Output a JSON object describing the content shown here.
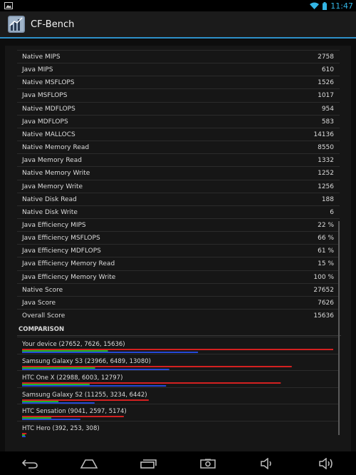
{
  "status_bar": {
    "time": "11:47"
  },
  "action_bar": {
    "title": "CF-Bench"
  },
  "results": [
    {
      "label": "Native MIPS",
      "value": "2758"
    },
    {
      "label": "Java MIPS",
      "value": "610"
    },
    {
      "label": "Native MSFLOPS",
      "value": "1526"
    },
    {
      "label": "Java MSFLOPS",
      "value": "1017"
    },
    {
      "label": "Native MDFLOPS",
      "value": "954"
    },
    {
      "label": "Java MDFLOPS",
      "value": "583"
    },
    {
      "label": "Native MALLOCS",
      "value": "14136"
    },
    {
      "label": "Native Memory Read",
      "value": "8550"
    },
    {
      "label": "Java Memory Read",
      "value": "1332"
    },
    {
      "label": "Native Memory Write",
      "value": "1252"
    },
    {
      "label": "Java Memory Write",
      "value": "1256"
    },
    {
      "label": "Native Disk Read",
      "value": "188"
    },
    {
      "label": "Native Disk Write",
      "value": "6"
    },
    {
      "label": "Java Efficiency MIPS",
      "value": "22 %"
    },
    {
      "label": "Java Efficiency MSFLOPS",
      "value": "66 %"
    },
    {
      "label": "Java Efficiency MDFLOPS",
      "value": "61 %"
    },
    {
      "label": "Java Efficiency Memory Read",
      "value": "15 %"
    },
    {
      "label": "Java Efficiency Memory Write",
      "value": "100 %"
    },
    {
      "label": "Native Score",
      "value": "27652"
    },
    {
      "label": "Java Score",
      "value": "7626"
    },
    {
      "label": "Overall Score",
      "value": "15636"
    }
  ],
  "comparison": {
    "header": "COMPARISON",
    "bar_colors": {
      "native": "#d42020",
      "java": "#22b422",
      "overall": "#2548d6"
    },
    "devices": [
      {
        "label": "Your device (27652, 7626, 15636)",
        "native": 27652,
        "java": 7626,
        "overall": 15636
      },
      {
        "label": "Samsung Galaxy S3 (23966, 6489, 13080)",
        "native": 23966,
        "java": 6489,
        "overall": 13080
      },
      {
        "label": "HTC One X (22988, 6003, 12797)",
        "native": 22988,
        "java": 6003,
        "overall": 12797
      },
      {
        "label": "Samsung Galaxy S2 (11255, 3234, 6442)",
        "native": 11255,
        "java": 3234,
        "overall": 6442
      },
      {
        "label": "HTC Sensation (9041, 2597, 5174)",
        "native": 9041,
        "java": 2597,
        "overall": 5174
      },
      {
        "label": "HTC Hero (392, 253, 308)",
        "native": 392,
        "java": 253,
        "overall": 308
      }
    ]
  },
  "nav_bar": {
    "buttons": [
      {
        "name": "back-button",
        "icon": "back-arrow-icon"
      },
      {
        "name": "home-button",
        "icon": "home-icon"
      },
      {
        "name": "recent-apps-button",
        "icon": "recent-apps-icon"
      },
      {
        "name": "screenshot-button",
        "icon": "camera-icon"
      },
      {
        "name": "volume-down-button",
        "icon": "volume-down-icon"
      },
      {
        "name": "volume-up-button",
        "icon": "volume-up-icon"
      }
    ]
  }
}
